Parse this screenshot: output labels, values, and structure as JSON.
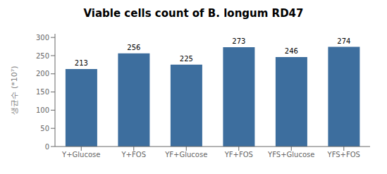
{
  "chart_data": {
    "type": "bar",
    "title": "Viable cells count of B. longum RD47",
    "categories": [
      "Y+Glucose",
      "Y+FOS",
      "YF+Glucose",
      "YF+FOS",
      "YFS+Glucose",
      "YFS+FOS"
    ],
    "values": [
      213,
      256,
      225,
      273,
      246,
      274
    ],
    "color": "#3D6E9E",
    "ylabel": "생균수 (*10⁷)",
    "ylim": [
      0,
      310
    ],
    "yticks": [
      0,
      50,
      100,
      150,
      200,
      250,
      300
    ],
    "grid": false,
    "data_labels": true
  }
}
